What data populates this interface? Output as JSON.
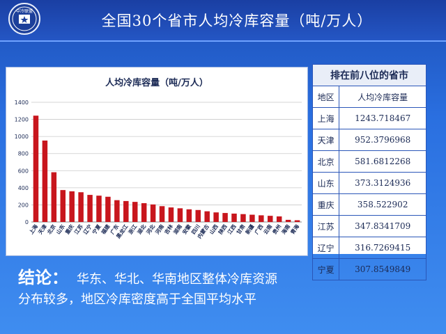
{
  "header": {
    "title": "全国30个省市人均冷库容量（吨/万人）",
    "logo_text": "中冷联盟"
  },
  "colors": {
    "bar": "#c8161d",
    "grid": "#c9c9c9",
    "text": "#1b2a55"
  },
  "chart_data": {
    "type": "bar",
    "title": "人均冷库容量（吨/万人）",
    "categories": [
      "上海",
      "天津",
      "北京",
      "山东",
      "重庆",
      "江苏",
      "辽宁",
      "宁夏",
      "福建",
      "广东",
      "黑龙江",
      "浙江",
      "湖北",
      "河北",
      "河南",
      "吉林",
      "湖南",
      "安徽",
      "四川",
      "内蒙古",
      "山西",
      "陕西",
      "江西",
      "甘肃",
      "新疆",
      "广西",
      "云南",
      "贵州",
      "海南",
      "青海"
    ],
    "values": [
      1243.72,
      952.38,
      581.68,
      373.31,
      358.52,
      347.83,
      316.73,
      307.85,
      295,
      255,
      245,
      235,
      220,
      205,
      185,
      170,
      160,
      148,
      140,
      125,
      112,
      105,
      98,
      92,
      85,
      78,
      72,
      65,
      25,
      20
    ],
    "yticks": [
      0,
      200,
      400,
      600,
      800,
      1000,
      1200,
      1400
    ],
    "ylim": [
      0,
      1400
    ],
    "grid": true
  },
  "table": {
    "caption": "排在前八位的省市",
    "headers": [
      "地区",
      "人均冷库容量"
    ],
    "rows": [
      [
        "上海",
        "1243.718467"
      ],
      [
        "天津",
        "952.3796968"
      ],
      [
        "北京",
        "581.6812268"
      ],
      [
        "山东",
        "373.3124936"
      ],
      [
        "重庆",
        "358.522902"
      ],
      [
        "江苏",
        "347.8341709"
      ],
      [
        "辽宁",
        "316.7269415"
      ],
      [
        "宁夏",
        "307.8549849"
      ]
    ]
  },
  "conclusion": {
    "label": "结论：",
    "line1": "华东、华北、华南地区整体冷库资源",
    "line2": "分布较多，地区冷库密度高于全国平均水平"
  }
}
